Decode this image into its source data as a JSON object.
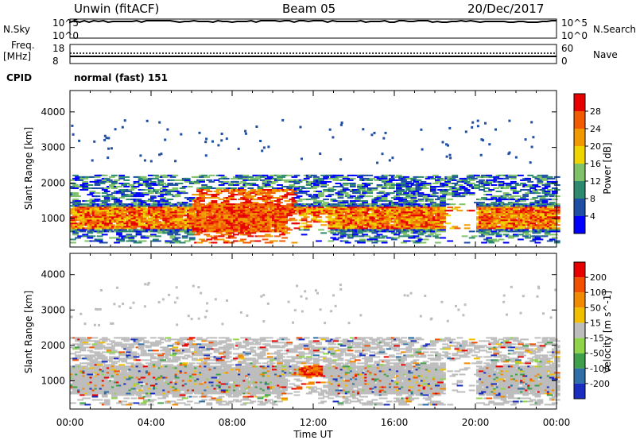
{
  "header": {
    "station": "Unwin (fitACF)",
    "beam": "Beam 05",
    "date": "20/Dec/2017"
  },
  "strips": {
    "nsky": {
      "label": "N.Sky",
      "top": "10^5",
      "bottom": "10^0"
    },
    "nsearch": {
      "label": "N.Search",
      "top": "10^5",
      "bottom": "10^0"
    },
    "freq": {
      "label_line1": "Freq.",
      "label_line2": "[MHz]",
      "top": "18",
      "bottom": "8"
    },
    "nave": {
      "label": "Nave",
      "top": "60",
      "bottom": "0"
    },
    "cpid": {
      "label": "CPID",
      "text": "normal (fast) 151"
    }
  },
  "chart_data": [
    {
      "type": "heatmap",
      "name": "power-panel",
      "xlabel": "Time UT",
      "ylabel": "Slant Range [km]",
      "ylim": [
        200,
        4600
      ],
      "yticks": [
        1000,
        2000,
        3000,
        4000
      ],
      "ytick_labels": [
        "1000",
        "2000",
        "3000",
        "4000"
      ],
      "colorbar_label": "Power [dB]",
      "colorbar_ticks": [
        "4",
        "8",
        "12",
        "16",
        "20",
        "24",
        "28"
      ],
      "colors": [
        "#0000ff",
        "#1f4fa5",
        "#2e8a6e",
        "#7fc26a",
        "#f0d400",
        "#f09a00",
        "#f05a00",
        "#e60000"
      ]
    },
    {
      "type": "heatmap",
      "name": "velocity-panel",
      "xlabel": "Time UT",
      "ylabel": "Slant Range [km]",
      "ylim": [
        200,
        4600
      ],
      "yticks": [
        1000,
        2000,
        3000,
        4000
      ],
      "ytick_labels": [
        "1000",
        "2000",
        "3000",
        "4000"
      ],
      "colorbar_label": "Velocity [m s^-1]",
      "colorbar_ticks": [
        "200",
        "100",
        "50",
        "15",
        "-15",
        "-50",
        "-100",
        "-200"
      ],
      "colors": [
        "#1a2dbf",
        "#2e6fa8",
        "#3f9f4a",
        "#8fd44a",
        "#bdbdbd",
        "#f0c000",
        "#f08a00",
        "#f05000",
        "#e60000"
      ]
    }
  ],
  "time_axis": {
    "labels": [
      "00:00",
      "04:00",
      "08:00",
      "12:00",
      "16:00",
      "20:00",
      "00:00"
    ],
    "title": "Time UT"
  }
}
